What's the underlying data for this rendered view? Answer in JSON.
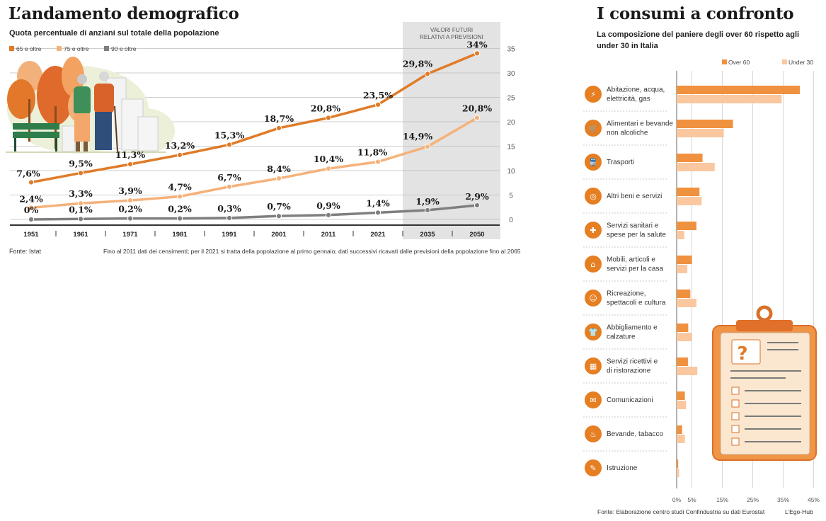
{
  "left": {
    "title": "L’andamento demografico",
    "subtitle": "Quota percentuale di anziani sul totale della popolazione",
    "source": "Fonte: Istat",
    "note": "Fino al 2011 dati dei censimenti; per il 2021 si tratta della popolazione al primo gennaio; dati successivi ricavati dalle previsioni della popolazione fino al 2065",
    "forecast_label": [
      "VALORI FUTURI",
      "RELATIVI A PREVISIONI"
    ]
  },
  "right": {
    "title": "I consumi a confronto",
    "subtitle": "La composizione del paniere degli over 60 rispetto agli under 30 in Italia",
    "source": "Fonte: Elaborazione centro studi Confindustria su dati Eurostat",
    "credit": "L’Ego-Hub"
  },
  "colors": {
    "dark_orange": "#e07b28",
    "light_orange": "#f5b27a",
    "gray": "#7f7f7f",
    "forecast_band": "#e3e3e3",
    "icon_circle": "#e67e22"
  },
  "chart_data": [
    {
      "type": "line",
      "x": [
        "1951",
        "1961",
        "1971",
        "1981",
        "1991",
        "2001",
        "2011",
        "2021",
        "2035",
        "2050"
      ],
      "ylim": [
        0,
        35
      ],
      "yticks": [
        0,
        5,
        10,
        15,
        20,
        25,
        30,
        35
      ],
      "grid": true,
      "legend_position": "top-left",
      "series": [
        {
          "name": "65 e oltre",
          "color": "#e07b28",
          "values": [
            7.6,
            9.5,
            11.3,
            13.2,
            15.3,
            18.7,
            20.8,
            23.5,
            29.8,
            34
          ],
          "labels": [
            "7,6%",
            "9,5%",
            "11,3%",
            "13,2%",
            "15,3%",
            "18,7%",
            "20,8%",
            "23,5%",
            "29,8%",
            "34%"
          ]
        },
        {
          "name": "75 e oltre",
          "color": "#f5b27a",
          "values": [
            2.4,
            3.3,
            3.9,
            4.7,
            6.7,
            8.4,
            10.4,
            11.8,
            14.9,
            20.8
          ],
          "labels": [
            "2,4%",
            "3,3%",
            "3,9%",
            "4,7%",
            "6,7%",
            "8,4%",
            "10,4%",
            "11,8%",
            "14,9%",
            "20,8%"
          ]
        },
        {
          "name": "90 e oltre",
          "color": "#7f7f7f",
          "values": [
            0,
            0.1,
            0.2,
            0.2,
            0.3,
            0.7,
            0.9,
            1.4,
            1.9,
            2.9
          ],
          "labels": [
            "0%",
            "0,1%",
            "0,2%",
            "0,2%",
            "0,3%",
            "0,7%",
            "0,9%",
            "1,4%",
            "1,9%",
            "2,9%"
          ]
        }
      ]
    },
    {
      "type": "bar",
      "orientation": "horizontal",
      "xlim": [
        0,
        45
      ],
      "xticks": [
        "0%",
        "5%",
        "15%",
        "25%",
        "35%",
        "45%"
      ],
      "xtick_values": [
        0,
        5,
        15,
        25,
        35,
        45
      ],
      "legend_position": "top-right",
      "categories": [
        {
          "label": "Abitazione, acqua, elettricità, gas",
          "icon": "lightning-icon"
        },
        {
          "label": "Alimentari e bevande non alcoliche",
          "icon": "groceries-icon"
        },
        {
          "label": "Trasporti",
          "icon": "train-icon"
        },
        {
          "label": "Altri beni e servizi",
          "icon": "coins-icon"
        },
        {
          "label": "Servizi sanitari e spese per la salute",
          "icon": "medical-cross-icon"
        },
        {
          "label": "Mobili, articoli e servizi per la casa",
          "icon": "chair-icon"
        },
        {
          "label": "Ricreazione, spettacoli e cultura",
          "icon": "theater-icon"
        },
        {
          "label": "Abbigliamento e calzature",
          "icon": "shirt-icon"
        },
        {
          "label": "Servizi ricettivi e di ristorazione",
          "icon": "hotel-icon"
        },
        {
          "label": "Comunicazioni",
          "icon": "chat-icon"
        },
        {
          "label": "Bevande, tabacco",
          "icon": "drink-icon"
        },
        {
          "label": "Istruzione",
          "icon": "graduation-icon"
        }
      ],
      "series": [
        {
          "name": "Over 60",
          "color": "#f0913f",
          "values": [
            40.5,
            18.5,
            8.5,
            7.5,
            6.5,
            5,
            4.5,
            3.8,
            3.7,
            2.7,
            1.8,
            0.5
          ]
        },
        {
          "name": "Under 30",
          "color": "#fbc79f",
          "values": [
            34.5,
            15.5,
            12.5,
            8.2,
            2.5,
            3.5,
            6.5,
            5,
            6.8,
            3.1,
            2.7,
            0.8
          ]
        }
      ]
    }
  ]
}
